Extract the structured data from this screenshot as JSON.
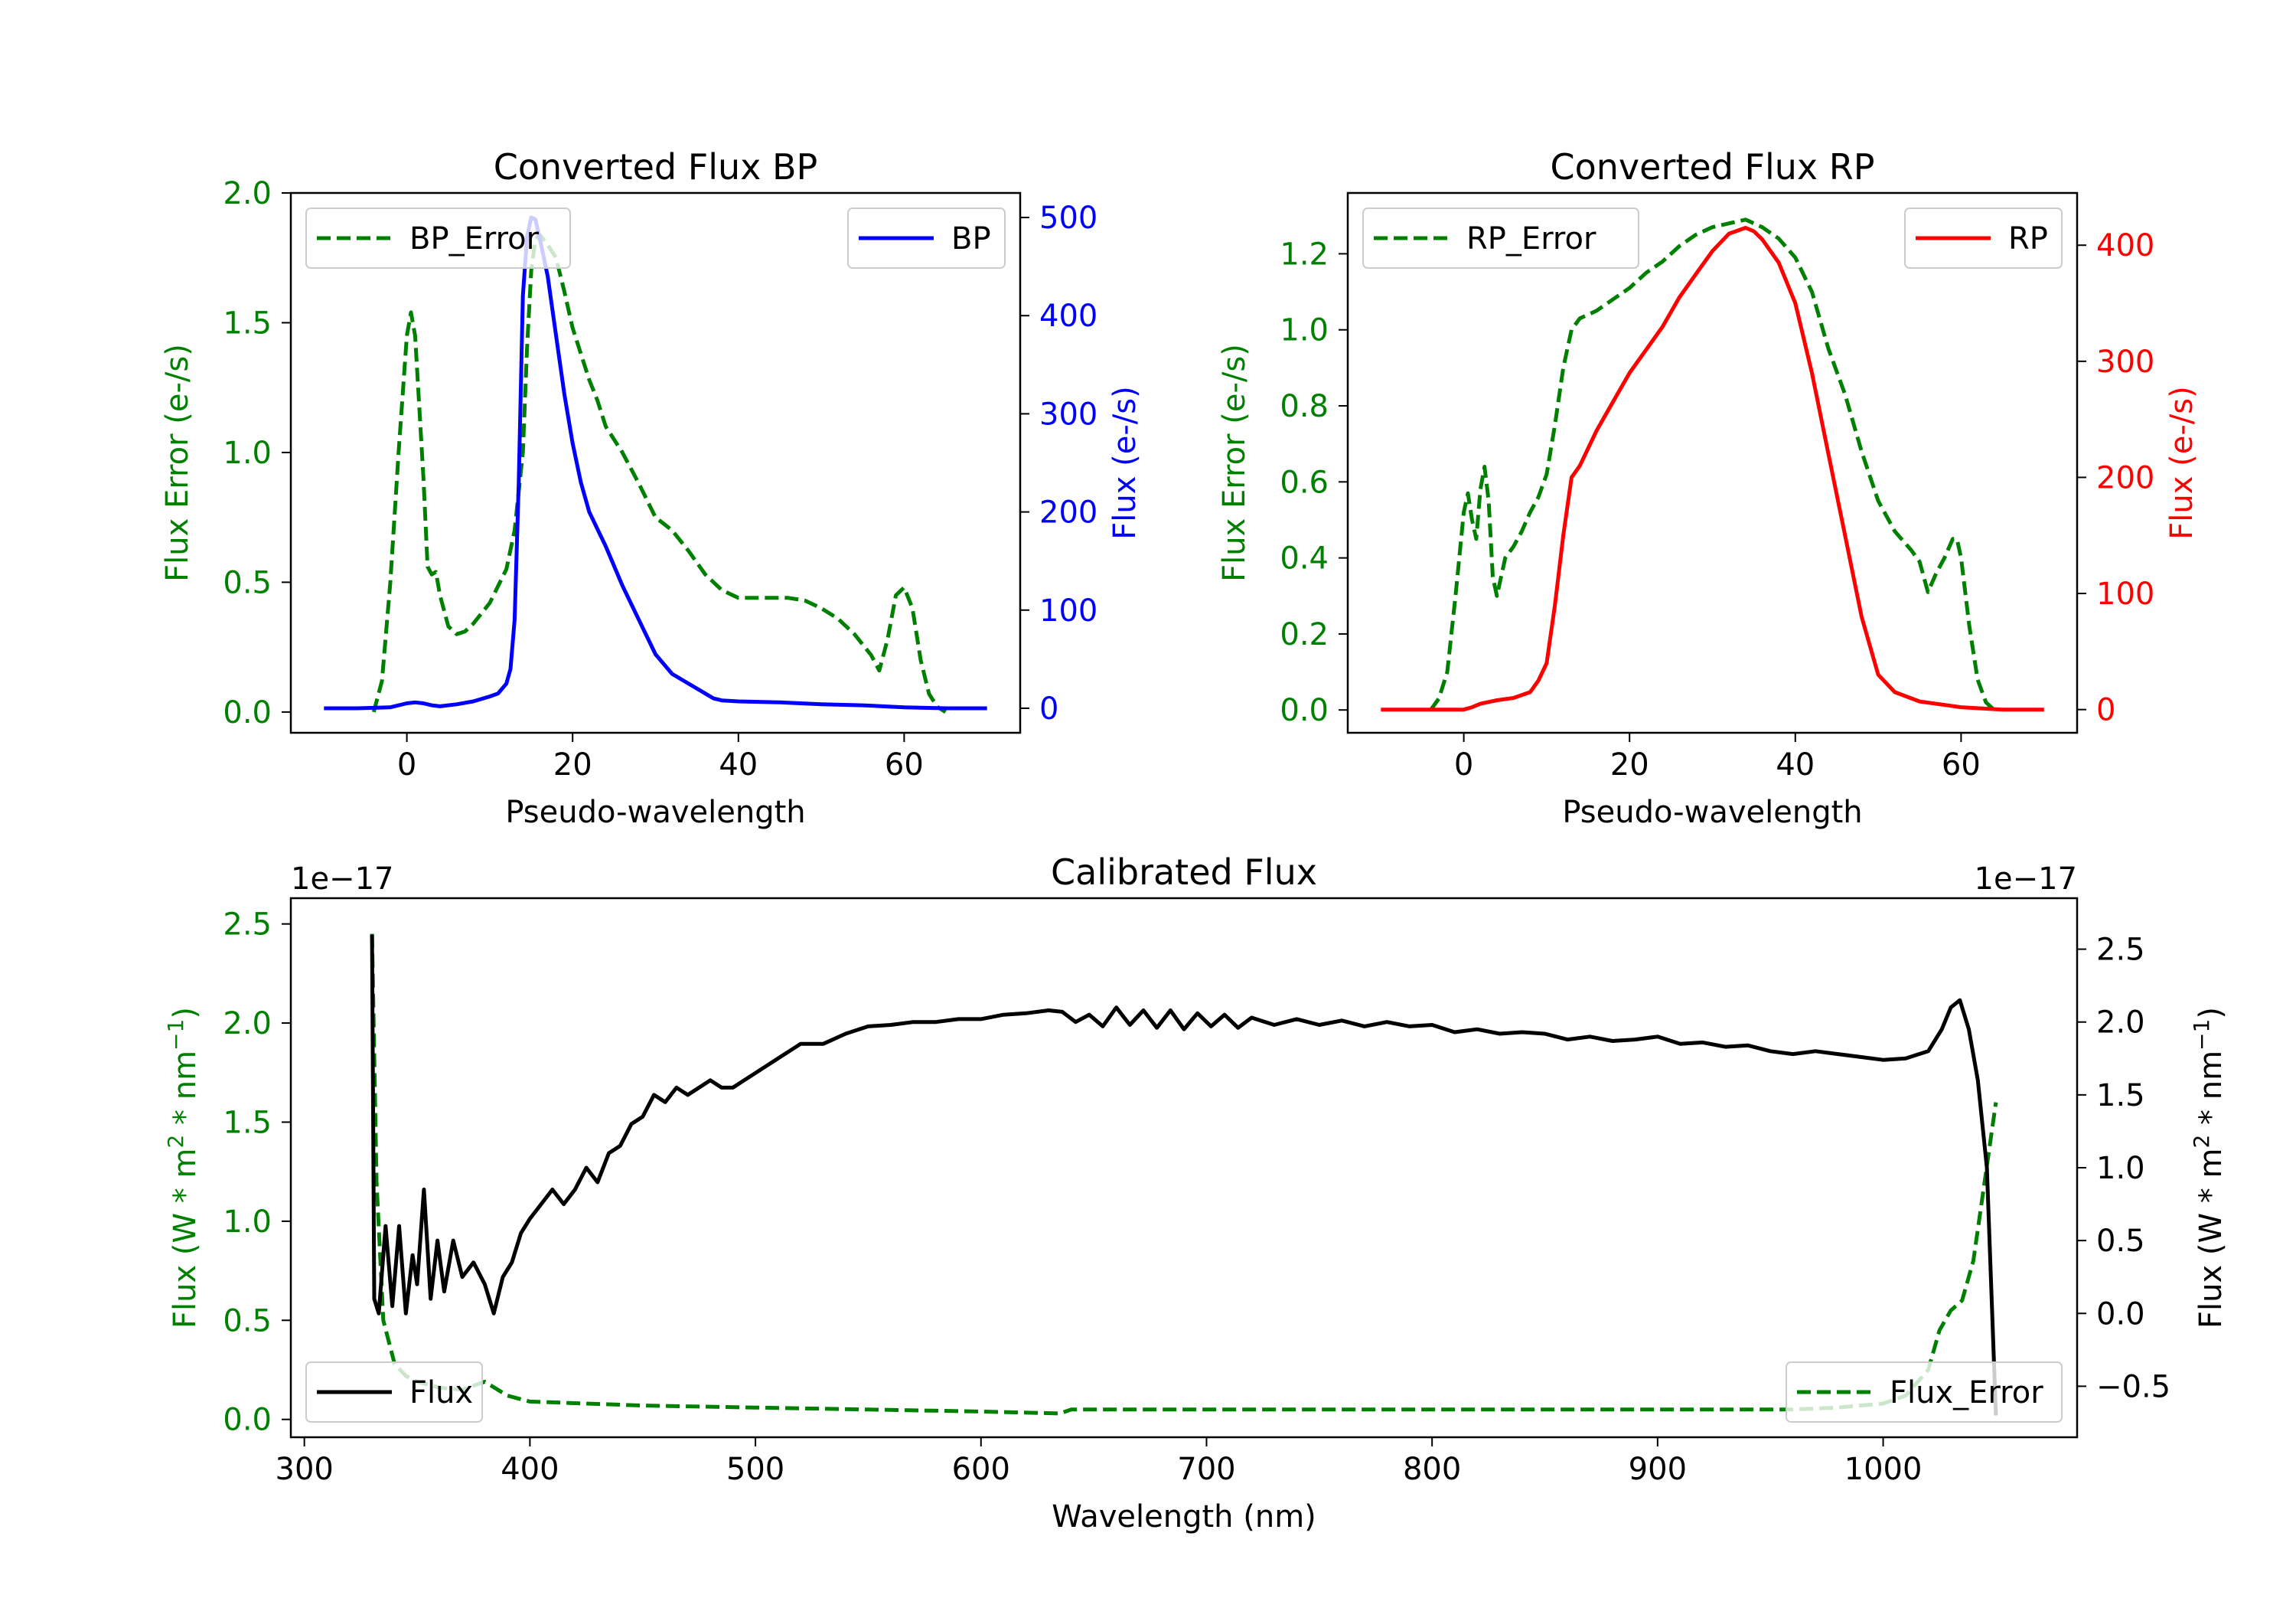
{
  "chart_data": [
    {
      "type": "line",
      "title": "Converted Flux BP",
      "xlabel": "Pseudo-wavelength",
      "xlim": [
        -14,
        74
      ],
      "xticks": [
        0,
        20,
        40,
        60
      ],
      "xtick_labels": [
        "0",
        "20",
        "40",
        "60"
      ],
      "y_left": {
        "label": "Flux Error (e-/s)",
        "color": "#008000",
        "lim": [
          -0.08,
          2.0
        ],
        "ticks": [
          0.0,
          0.5,
          1.0,
          1.5,
          2.0
        ],
        "tick_labels": [
          "0.0",
          "0.5",
          "1.0",
          "1.5",
          "2.0"
        ]
      },
      "y_right": {
        "label": "Flux (e-/s)",
        "color": "#0000ff",
        "lim": [
          -25,
          525
        ],
        "ticks": [
          0,
          100,
          200,
          300,
          400,
          500
        ],
        "tick_labels": [
          "0",
          "100",
          "200",
          "300",
          "400",
          "500"
        ]
      },
      "series": [
        {
          "name": "BP_Error",
          "label": "BP_Error",
          "axis": "left",
          "color": "#008000",
          "dash": true,
          "legend": "upper left",
          "x": [
            -4,
            -3,
            -2,
            -1,
            0,
            0.5,
            1,
            2,
            2.5,
            3,
            3.5,
            4,
            5,
            6,
            7,
            8,
            10,
            12,
            13,
            14,
            14.5,
            15,
            15.5,
            16,
            17,
            18,
            19,
            20,
            21,
            22,
            23,
            24,
            26,
            28,
            30,
            32,
            34,
            36,
            38,
            40,
            42,
            44,
            46,
            48,
            50,
            52,
            54,
            56,
            57,
            58,
            59,
            60,
            61,
            62,
            63,
            64,
            65
          ],
          "values": [
            0.0,
            0.12,
            0.5,
            1.0,
            1.45,
            1.54,
            1.45,
            0.9,
            0.56,
            0.53,
            0.54,
            0.45,
            0.33,
            0.3,
            0.31,
            0.34,
            0.42,
            0.55,
            0.7,
            1.0,
            1.4,
            1.7,
            1.82,
            1.84,
            1.8,
            1.75,
            1.62,
            1.48,
            1.38,
            1.28,
            1.2,
            1.1,
            1.0,
            0.88,
            0.75,
            0.7,
            0.62,
            0.53,
            0.47,
            0.44,
            0.44,
            0.44,
            0.44,
            0.43,
            0.4,
            0.36,
            0.3,
            0.22,
            0.16,
            0.28,
            0.45,
            0.48,
            0.4,
            0.2,
            0.07,
            0.02,
            0.0
          ]
        },
        {
          "name": "BP",
          "label": "BP",
          "axis": "right",
          "color": "#0000ff",
          "dash": false,
          "legend": "upper right",
          "x": [
            -10,
            -6,
            -2,
            0,
            1,
            2,
            3,
            4,
            6,
            8,
            10,
            11,
            12,
            12.5,
            13,
            13.5,
            14,
            14.5,
            15,
            15.5,
            16,
            17,
            18,
            19,
            20,
            21,
            22,
            24,
            26,
            28,
            30,
            32,
            34,
            36,
            37,
            38,
            40,
            45,
            50,
            55,
            60,
            65,
            70
          ],
          "values": [
            0,
            0,
            1,
            5,
            6,
            5,
            3,
            2,
            4,
            7,
            12,
            15,
            25,
            40,
            90,
            230,
            420,
            480,
            500,
            498,
            480,
            440,
            380,
            320,
            270,
            230,
            200,
            165,
            125,
            90,
            55,
            35,
            25,
            15,
            10,
            8,
            7,
            6,
            4,
            3,
            1,
            0,
            0
          ]
        }
      ]
    },
    {
      "type": "line",
      "title": "Converted Flux RP",
      "xlabel": "Pseudo-wavelength",
      "xlim": [
        -14,
        74
      ],
      "xticks": [
        0,
        20,
        40,
        60
      ],
      "xtick_labels": [
        "0",
        "20",
        "40",
        "60"
      ],
      "y_left": {
        "label": "Flux Error (e-/s)",
        "color": "#008000",
        "lim": [
          -0.06,
          1.36
        ],
        "ticks": [
          0.0,
          0.2,
          0.4,
          0.6,
          0.8,
          1.0,
          1.2
        ],
        "tick_labels": [
          "0.0",
          "0.2",
          "0.4",
          "0.6",
          "0.8",
          "1.0",
          "1.2"
        ]
      },
      "y_right": {
        "label": "Flux (e-/s)",
        "color": "#ff0000",
        "lim": [
          -20,
          445
        ],
        "ticks": [
          0,
          100,
          200,
          300,
          400
        ],
        "tick_labels": [
          "0",
          "100",
          "200",
          "300",
          "400"
        ]
      },
      "series": [
        {
          "name": "RP_Error",
          "label": "RP_Error",
          "axis": "left",
          "color": "#008000",
          "dash": true,
          "legend": "upper left",
          "x": [
            -4,
            -3,
            -2,
            -1,
            0,
            0.5,
            1,
            1.5,
            2,
            2.5,
            3,
            3.5,
            4,
            5,
            6,
            7,
            8,
            9,
            10,
            11,
            12,
            13,
            14,
            15,
            16,
            18,
            20,
            22,
            24,
            26,
            28,
            30,
            32,
            34,
            36,
            38,
            40,
            42,
            44,
            46,
            48,
            50,
            52,
            54,
            55,
            56,
            57,
            58,
            59,
            59.5,
            60,
            61,
            62,
            63,
            64
          ],
          "values": [
            0.0,
            0.03,
            0.1,
            0.3,
            0.52,
            0.57,
            0.5,
            0.45,
            0.58,
            0.64,
            0.55,
            0.35,
            0.3,
            0.4,
            0.43,
            0.47,
            0.52,
            0.56,
            0.62,
            0.75,
            0.9,
            1.0,
            1.03,
            1.04,
            1.05,
            1.08,
            1.11,
            1.15,
            1.18,
            1.22,
            1.25,
            1.27,
            1.28,
            1.29,
            1.27,
            1.24,
            1.19,
            1.1,
            0.95,
            0.83,
            0.68,
            0.55,
            0.47,
            0.42,
            0.39,
            0.31,
            0.36,
            0.4,
            0.45,
            0.45,
            0.4,
            0.22,
            0.08,
            0.02,
            0.0
          ]
        },
        {
          "name": "RP",
          "label": "RP",
          "axis": "right",
          "color": "#ff0000",
          "dash": false,
          "legend": "upper right",
          "x": [
            -10,
            -5,
            0,
            1,
            2,
            4,
            6,
            8,
            9,
            10,
            11,
            12,
            13,
            14,
            16,
            18,
            20,
            22,
            24,
            26,
            28,
            30,
            32,
            34,
            35,
            36,
            38,
            40,
            42,
            44,
            46,
            48,
            50,
            52,
            55,
            60,
            65,
            70
          ],
          "values": [
            0,
            0,
            0,
            2,
            5,
            8,
            10,
            15,
            25,
            40,
            90,
            150,
            200,
            210,
            240,
            265,
            290,
            310,
            330,
            355,
            375,
            395,
            410,
            415,
            412,
            405,
            385,
            350,
            290,
            220,
            150,
            80,
            30,
            15,
            7,
            2,
            0,
            0
          ]
        }
      ]
    },
    {
      "type": "line",
      "title": "Calibrated Flux",
      "xlabel": "Wavelength (nm)",
      "xlim": [
        294,
        1086
      ],
      "xticks": [
        300,
        400,
        500,
        600,
        700,
        800,
        900,
        1000
      ],
      "xtick_labels": [
        "300",
        "400",
        "500",
        "600",
        "700",
        "800",
        "900",
        "1000"
      ],
      "y_left": {
        "label": "Flux (W * m2 * nm−1)",
        "label_base": "Flux (W * m",
        "label_sup1": "2",
        "label_mid": " * nm",
        "label_sup2": "−1",
        "label_end": ")",
        "offset": "1e−17",
        "color": "#008000",
        "lim": [
          -0.09,
          2.63
        ],
        "ticks": [
          0.0,
          0.5,
          1.0,
          1.5,
          2.0,
          2.5
        ],
        "tick_labels": [
          "0.0",
          "0.5",
          "1.0",
          "1.5",
          "2.0",
          "2.5"
        ]
      },
      "y_right": {
        "label": "Flux (W * m2 * nm−1)",
        "label_base": "Flux (W * m",
        "label_sup1": "2",
        "label_mid": " * nm",
        "label_sup2": "−1",
        "label_end": ")",
        "offset": "1e−17",
        "color": "#000000",
        "lim": [
          -0.85,
          2.85
        ],
        "ticks": [
          -0.5,
          0.0,
          0.5,
          1.0,
          1.5,
          2.0,
          2.5
        ],
        "tick_labels": [
          "−0.5",
          "0.0",
          "0.5",
          "1.0",
          "1.5",
          "2.0",
          "2.5"
        ]
      },
      "series": [
        {
          "name": "Flux_Error",
          "label": "Flux_Error",
          "axis": "left",
          "color": "#008000",
          "dash": true,
          "legend": "lower right",
          "x": [
            330,
            332,
            335,
            340,
            345,
            350,
            360,
            370,
            380,
            390,
            400,
            450,
            500,
            550,
            600,
            635,
            640,
            700,
            800,
            900,
            960,
            980,
            1000,
            1010,
            1020,
            1025,
            1030,
            1035,
            1040,
            1045,
            1050
          ],
          "values": [
            2.45,
            1.2,
            0.5,
            0.28,
            0.22,
            0.19,
            0.16,
            0.15,
            0.19,
            0.12,
            0.09,
            0.07,
            0.06,
            0.05,
            0.04,
            0.03,
            0.05,
            0.05,
            0.05,
            0.05,
            0.05,
            0.06,
            0.08,
            0.12,
            0.25,
            0.45,
            0.55,
            0.6,
            0.8,
            1.2,
            1.6
          ]
        },
        {
          "name": "Flux",
          "label": "Flux",
          "axis": "right",
          "color": "#000000",
          "dash": false,
          "legend": "lower left",
          "x": [
            330,
            331,
            333,
            336,
            339,
            342,
            345,
            348,
            350,
            353,
            356,
            359,
            362,
            366,
            370,
            375,
            380,
            384,
            388,
            392,
            396,
            400,
            405,
            410,
            415,
            420,
            425,
            430,
            435,
            440,
            445,
            450,
            455,
            460,
            465,
            470,
            475,
            480,
            485,
            490,
            495,
            500,
            505,
            510,
            515,
            520,
            530,
            540,
            550,
            560,
            570,
            580,
            590,
            600,
            610,
            620,
            630,
            636,
            642,
            648,
            654,
            660,
            666,
            672,
            678,
            684,
            690,
            696,
            702,
            708,
            714,
            720,
            730,
            740,
            750,
            760,
            770,
            780,
            790,
            800,
            810,
            820,
            830,
            840,
            850,
            860,
            870,
            880,
            890,
            900,
            910,
            920,
            930,
            940,
            950,
            960,
            970,
            980,
            990,
            1000,
            1010,
            1020,
            1026,
            1030,
            1034,
            1038,
            1042,
            1046,
            1050
          ],
          "values": [
            2.6,
            0.1,
            0.0,
            0.6,
            0.05,
            0.6,
            0.0,
            0.4,
            0.2,
            0.85,
            0.1,
            0.5,
            0.15,
            0.5,
            0.25,
            0.35,
            0.2,
            0.0,
            0.25,
            0.35,
            0.55,
            0.65,
            0.75,
            0.85,
            0.75,
            0.85,
            1.0,
            0.9,
            1.1,
            1.15,
            1.3,
            1.35,
            1.5,
            1.45,
            1.55,
            1.5,
            1.55,
            1.6,
            1.55,
            1.55,
            1.6,
            1.65,
            1.7,
            1.75,
            1.8,
            1.85,
            1.85,
            1.92,
            1.97,
            1.98,
            2.0,
            2.0,
            2.02,
            2.02,
            2.05,
            2.06,
            2.08,
            2.07,
            2.0,
            2.05,
            1.97,
            2.1,
            1.98,
            2.08,
            1.96,
            2.08,
            1.95,
            2.06,
            1.97,
            2.05,
            1.96,
            2.03,
            1.98,
            2.02,
            1.98,
            2.01,
            1.97,
            2.0,
            1.97,
            1.98,
            1.93,
            1.95,
            1.92,
            1.93,
            1.92,
            1.88,
            1.9,
            1.87,
            1.88,
            1.9,
            1.85,
            1.86,
            1.83,
            1.84,
            1.8,
            1.78,
            1.8,
            1.78,
            1.76,
            1.74,
            1.75,
            1.8,
            1.95,
            2.1,
            2.15,
            1.95,
            1.6,
            1.0,
            -0.7
          ]
        }
      ]
    }
  ]
}
